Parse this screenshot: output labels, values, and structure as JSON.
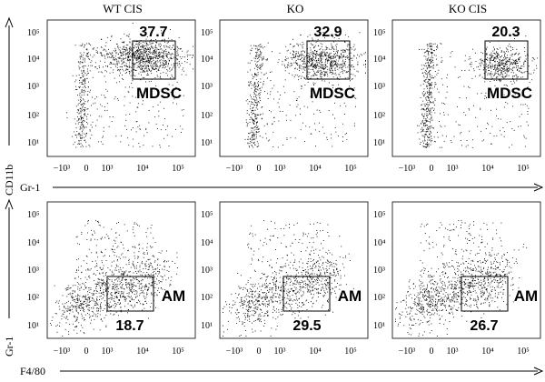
{
  "chart_data": {
    "type": "scatter",
    "figure_type": "flow cytometry dot plots",
    "column_titles": [
      "WT CIS",
      "KO",
      "KO CIS"
    ],
    "rows": [
      {
        "row": "top",
        "xlabel": "Gr-1",
        "ylabel": "CD11b",
        "x_scale": "biexponential",
        "y_scale": "log",
        "x_ticks": [
          "−10³",
          "0",
          "10³",
          "10⁴",
          "10⁵"
        ],
        "y_ticks": [
          "10¹",
          "10²",
          "10³",
          "10⁴",
          "10⁵"
        ],
        "gate_label": "MDSC",
        "gate_values": [
          37.7,
          32.9,
          20.3
        ],
        "gate_unit": "% of parent"
      },
      {
        "row": "bottom",
        "xlabel": "F4/80",
        "ylabel": "Gr-1",
        "x_scale": "biexponential",
        "y_scale": "log",
        "x_ticks": [
          "−10³",
          "0",
          "10³",
          "10⁴",
          "10⁵"
        ],
        "y_ticks": [
          "10¹",
          "10²",
          "10³",
          "10⁴",
          "10⁵"
        ],
        "gate_label": "AM",
        "gate_values": [
          18.7,
          29.5,
          26.7
        ],
        "gate_unit": "% of parent"
      }
    ],
    "grid": false,
    "legend": "none"
  },
  "colors": {
    "dots": "#000000",
    "axes": "#000000",
    "background": "#ffffff"
  }
}
